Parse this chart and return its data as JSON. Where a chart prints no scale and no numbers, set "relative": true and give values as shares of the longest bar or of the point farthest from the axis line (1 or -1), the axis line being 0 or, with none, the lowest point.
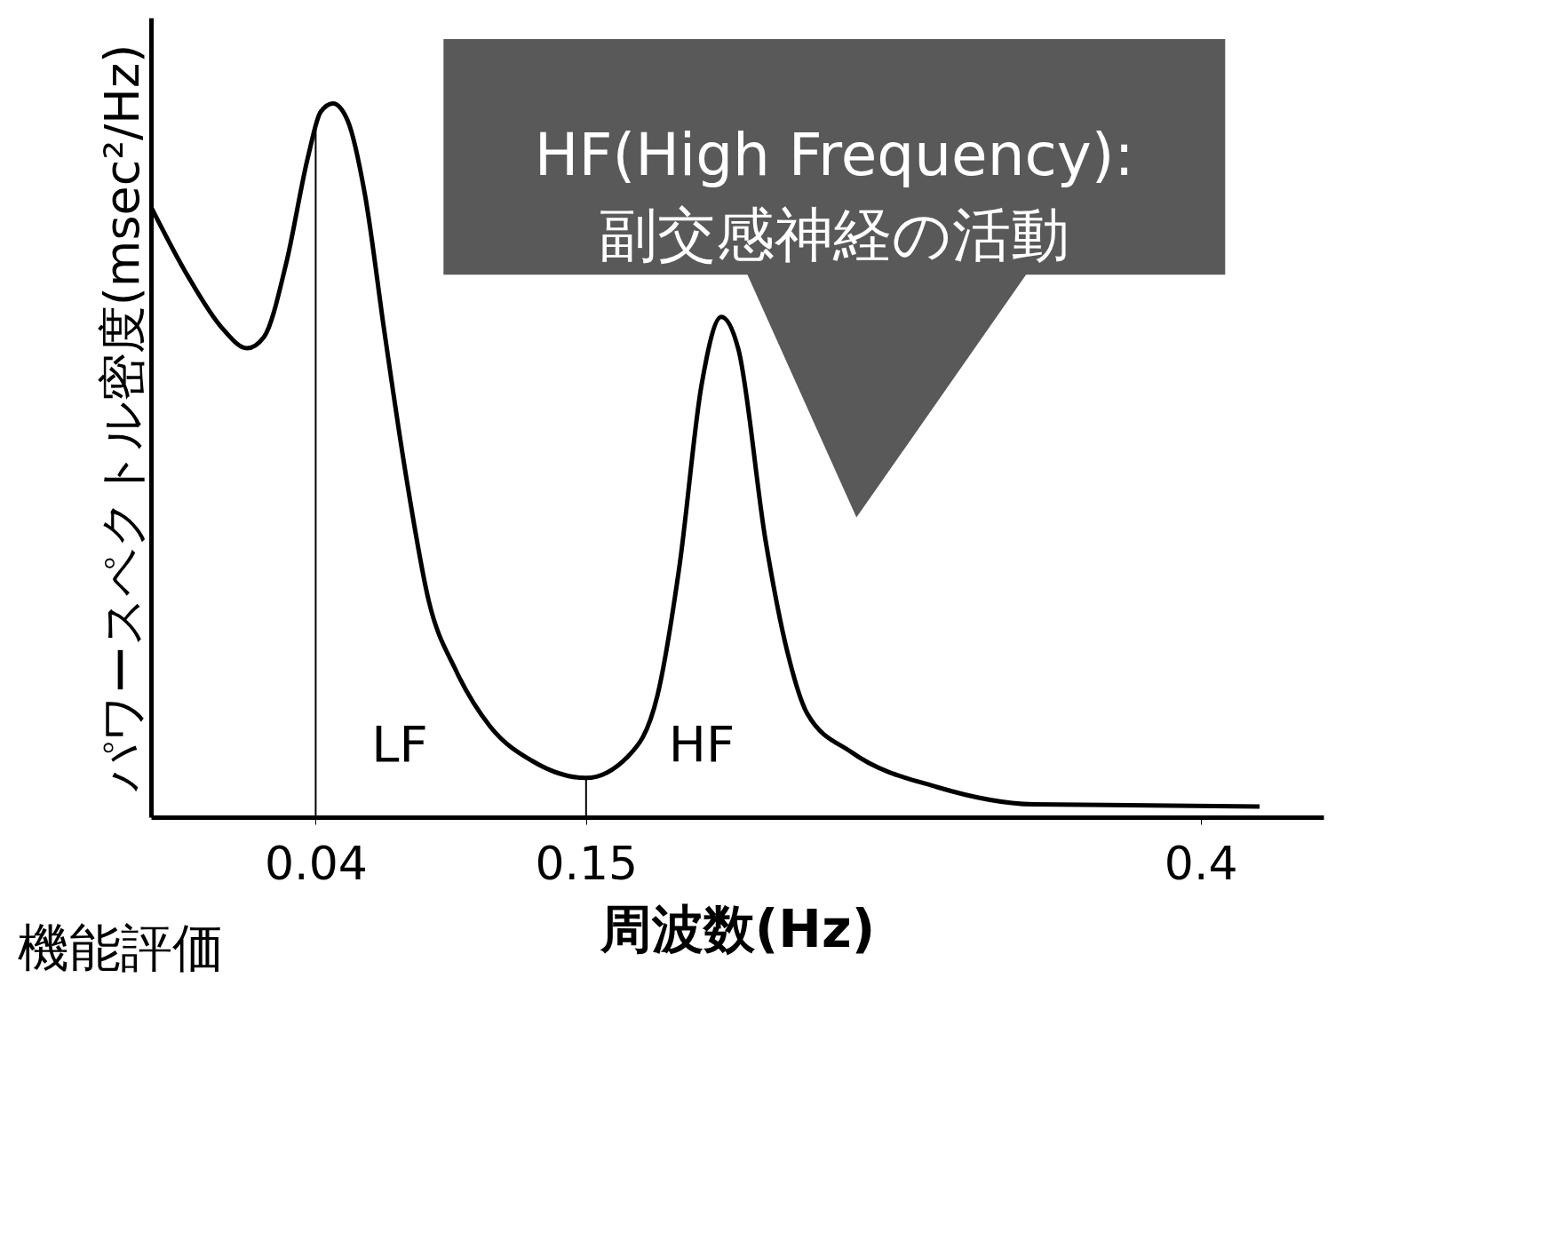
{
  "chart_data": {
    "type": "line",
    "relative": true,
    "xlabel": "周波数(Hz)",
    "ylabel": "パワースペクトル密度(msec²/Hz)",
    "x": [
      -0.027,
      -0.012,
      0.002,
      0.012,
      0.019,
      0.028,
      0.037,
      0.042,
      0.047,
      0.053,
      0.06,
      0.068,
      0.077,
      0.086,
      0.097,
      0.111,
      0.128,
      0.15,
      0.167,
      0.179,
      0.188,
      0.197,
      0.205,
      0.212,
      0.223,
      0.232,
      0.24,
      0.258,
      0.293,
      0.332,
      0.424
    ],
    "series": [
      {
        "color": "#000000",
        "values": [
          0.855,
          0.758,
          0.685,
          0.657,
          0.673,
          0.776,
          0.927,
          0.988,
          1.0,
          0.976,
          0.873,
          0.679,
          0.473,
          0.303,
          0.206,
          0.127,
          0.079,
          0.055,
          0.085,
          0.17,
          0.352,
          0.606,
          0.701,
          0.655,
          0.388,
          0.23,
          0.145,
          0.091,
          0.042,
          0.018,
          0.015
        ]
      },
      {
        "type": "line",
        "color": "#000000",
        "x": [
          0.15,
          0.15
        ],
        "values": [
          0,
          0.055
        ]
      }
    ],
    "xlim": [
      -0.027,
      0.45
    ],
    "xticks": [
      0.04,
      0.15,
      0.4
    ],
    "ref_lines": [
      {
        "axis": "x",
        "value": 0.04
      }
    ],
    "annotations": [
      "HF(High Frequency):\n副交感神経の活動",
      "機能評価",
      "LF",
      "HF"
    ],
    "grid": false,
    "marker": "none",
    "line_style": "solid"
  }
}
